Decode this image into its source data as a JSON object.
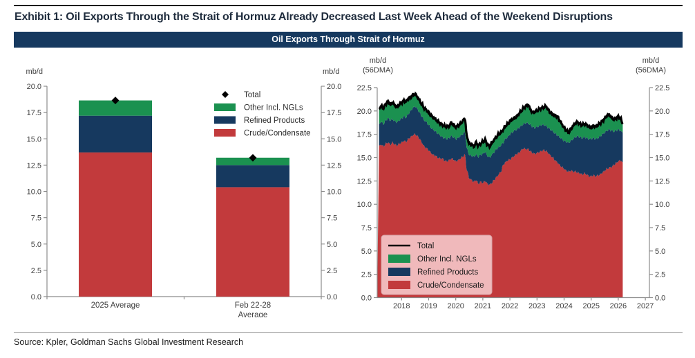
{
  "exhibit": {
    "title": "Exhibit 1: Oil Exports Through the Strait of Hormuz Already Decreased Last Week Ahead of the Weekend Disruptions",
    "chart_header": "Oil Exports Through Strait of Hormuz",
    "source": "Source: Kpler, Goldman Sachs Global Investment Research"
  },
  "colors": {
    "navy": "#16395f",
    "green": "#1b9150",
    "red": "#c23a3c",
    "black": "#000000",
    "header_bg": "#16395f",
    "axis": "#8c8c8c",
    "tick_text": "#3d3d3d",
    "legend_bg": "#f0b9bb",
    "legend_border": "#d8a5a8"
  },
  "chart_data": [
    {
      "type": "bar",
      "title": "",
      "ylabel_left": "mb/d",
      "ylabel_right": "mb/d",
      "ylim": [
        0,
        20
      ],
      "ytick_step": 2.5,
      "grid": false,
      "categories": [
        "2025 Average",
        "Feb 22-28\nAverage"
      ],
      "series": [
        {
          "name": "Crude/Condensate",
          "color_key": "red",
          "values": [
            13.7,
            10.4
          ]
        },
        {
          "name": "Refined Products",
          "color_key": "navy",
          "values": [
            3.5,
            2.1
          ]
        },
        {
          "name": "Other Incl. NGLs",
          "color_key": "green",
          "values": [
            1.45,
            0.7
          ]
        }
      ],
      "total_markers": {
        "name": "Total",
        "marker": "diamond",
        "values": [
          18.65,
          13.2
        ]
      },
      "legend": [
        {
          "label": "Total",
          "swatch": "diamond",
          "color_key": "black"
        },
        {
          "label": "Other Incl. NGLs",
          "swatch": "rect",
          "color_key": "green"
        },
        {
          "label": "Refined Products",
          "swatch": "rect",
          "color_key": "navy"
        },
        {
          "label": "Crude/Condensate",
          "swatch": "rect",
          "color_key": "red"
        }
      ],
      "legend_position": "upper right"
    },
    {
      "type": "area",
      "title": "",
      "ylabel_left": "mb/d\n(56DMA)",
      "ylabel_right": "mb/d\n(56DMA)",
      "ylim": [
        0,
        22.5
      ],
      "ytick_step": 2.5,
      "grid": false,
      "xlim": [
        2017.1,
        2027.15
      ],
      "xticks": [
        2018,
        2019,
        2020,
        2021,
        2022,
        2023,
        2024,
        2025,
        2026,
        2027
      ],
      "x_start": 2017.167,
      "x_step": 0.08333,
      "series": [
        {
          "name": "Crude/Condensate",
          "color_key": "red",
          "values": [
            16.3,
            16.4,
            16.2,
            16.5,
            16.6,
            16.4,
            16.6,
            16.4,
            16.3,
            16.5,
            16.6,
            16.8,
            16.7,
            17.0,
            17.2,
            17.4,
            17.5,
            17.3,
            17.0,
            16.6,
            16.2,
            16.0,
            15.8,
            15.5,
            15.3,
            15.2,
            15.0,
            14.9,
            14.9,
            14.7,
            14.6,
            14.7,
            14.9,
            14.8,
            14.6,
            14.7,
            14.9,
            15.1,
            15.3,
            13.6,
            12.8,
            12.6,
            12.4,
            12.6,
            12.2,
            12.4,
            12.3,
            12.5,
            12.2,
            12.1,
            12.3,
            12.6,
            12.9,
            13.2,
            13.5,
            14.2,
            14.5,
            14.7,
            14.8,
            15.0,
            15.2,
            15.4,
            15.5,
            15.8,
            16.0,
            15.9,
            15.9,
            15.7,
            15.5,
            15.4,
            15.5,
            15.6,
            15.7,
            15.8,
            15.7,
            15.5,
            15.2,
            15.0,
            14.7,
            14.5,
            14.2,
            14.0,
            13.8,
            13.6,
            13.5,
            13.6,
            13.5,
            13.5,
            13.4,
            13.3,
            13.2,
            13.3,
            13.2,
            13.0,
            13.0,
            13.1,
            13.0,
            13.1,
            13.2,
            13.4,
            13.6,
            13.8,
            13.9,
            14.0,
            14.2,
            14.4,
            14.6,
            14.7,
            14.5
          ]
        },
        {
          "name": "Refined Products",
          "color_key": "navy",
          "values": [
            2.3,
            2.4,
            2.4,
            2.5,
            2.6,
            2.6,
            2.5,
            2.5,
            2.5,
            2.5,
            2.6,
            2.6,
            2.6,
            2.7,
            2.8,
            2.9,
            3.0,
            2.9,
            2.8,
            2.8,
            2.8,
            2.8,
            2.7,
            2.7,
            2.7,
            2.6,
            2.6,
            2.5,
            2.3,
            2.4,
            2.4,
            2.4,
            2.4,
            2.4,
            2.4,
            2.4,
            2.4,
            2.4,
            2.4,
            2.3,
            2.5,
            2.6,
            2.7,
            2.7,
            2.9,
            2.9,
            3.1,
            3.1,
            3.0,
            2.9,
            3.0,
            3.0,
            3.0,
            2.9,
            2.8,
            2.4,
            2.5,
            2.5,
            2.7,
            2.7,
            2.7,
            2.6,
            2.7,
            2.6,
            2.6,
            2.8,
            2.8,
            2.8,
            2.8,
            2.8,
            2.8,
            2.8,
            2.8,
            2.7,
            2.7,
            2.7,
            2.8,
            2.8,
            2.9,
            2.9,
            3.0,
            3.0,
            3.0,
            3.1,
            3.1,
            3.2,
            3.5,
            3.7,
            3.9,
            3.9,
            3.9,
            3.9,
            3.9,
            4.0,
            4.0,
            4.0,
            4.0,
            4.0,
            4.1,
            4.1,
            4.1,
            4.1,
            4.1,
            3.9,
            3.6,
            3.5,
            3.4,
            3.2,
            3.2
          ]
        },
        {
          "name": "Other Incl. NGLs",
          "color_key": "green",
          "values": [
            1.6,
            1.7,
            1.7,
            1.8,
            1.8,
            1.7,
            1.8,
            1.7,
            1.6,
            1.7,
            1.7,
            1.7,
            1.7,
            1.6,
            1.5,
            1.4,
            1.3,
            1.3,
            1.3,
            1.3,
            1.3,
            1.3,
            1.3,
            1.3,
            1.3,
            1.3,
            1.3,
            1.3,
            1.3,
            1.3,
            1.3,
            1.3,
            1.4,
            1.3,
            1.3,
            1.3,
            1.3,
            1.4,
            1.5,
            1.3,
            1.2,
            1.2,
            1.1,
            1.3,
            1.2,
            1.2,
            1.3,
            1.3,
            1.2,
            1.2,
            1.3,
            1.3,
            1.3,
            1.4,
            1.4,
            1.4,
            1.4,
            1.4,
            1.4,
            1.4,
            1.3,
            1.4,
            1.5,
            1.6,
            1.7,
            1.8,
            2.0,
            1.7,
            1.5,
            1.7,
            1.7,
            1.8,
            1.8,
            1.9,
            2.1,
            1.9,
            1.8,
            1.8,
            1.9,
            2.0,
            1.8,
            1.6,
            1.4,
            1.2,
            1.1,
            1.3,
            1.4,
            1.5,
            1.5,
            1.4,
            1.4,
            1.4,
            1.4,
            1.3,
            1.2,
            1.3,
            1.3,
            1.4,
            1.4,
            1.4,
            1.5,
            1.6,
            1.6,
            1.4,
            1.3,
            1.3,
            1.4,
            1.3,
            0.9
          ]
        }
      ],
      "total_line": {
        "name": "Total",
        "color_key": "black",
        "note": "sum of stacked series"
      },
      "legend": [
        {
          "label": "Total",
          "swatch": "line",
          "color_key": "black"
        },
        {
          "label": "Other Incl. NGLs",
          "swatch": "rect",
          "color_key": "green"
        },
        {
          "label": "Refined Products",
          "swatch": "rect",
          "color_key": "navy"
        },
        {
          "label": "Crude/Condensate",
          "swatch": "rect",
          "color_key": "red"
        }
      ],
      "legend_position": "lower left"
    }
  ]
}
